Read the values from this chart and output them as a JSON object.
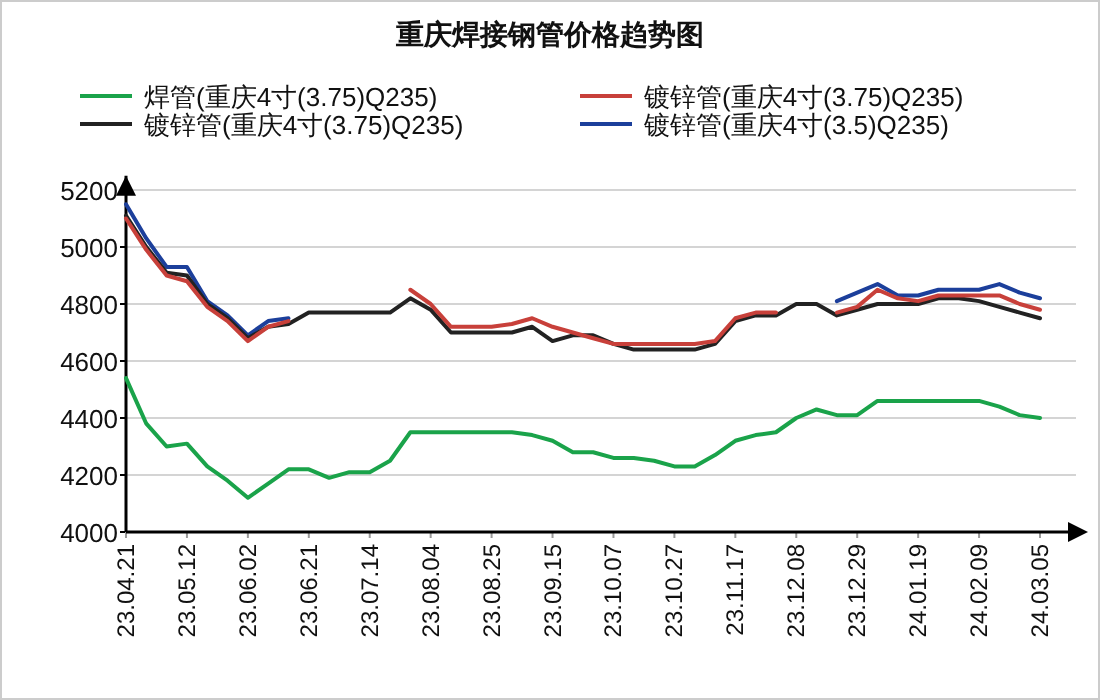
{
  "chart_data": {
    "type": "line",
    "title": "重庆焊接钢管价格趋势图",
    "categories": [
      "23.04.21",
      null,
      null,
      "23.05.12",
      null,
      null,
      "23.06.02",
      null,
      null,
      "23.06.21",
      null,
      null,
      "23.07.14",
      null,
      null,
      "23.08.04",
      null,
      null,
      "23.08.25",
      null,
      null,
      "23.09.15",
      null,
      null,
      "23.10.07",
      null,
      null,
      "23.10.27",
      null,
      null,
      "23.11.17",
      null,
      null,
      "23.12.08",
      null,
      null,
      "23.12.29",
      null,
      null,
      "24.01.19",
      null,
      null,
      "24.02.09",
      null,
      null,
      "24.03.05"
    ],
    "series": [
      {
        "name": "焊管(重庆4寸(3.75)Q235)",
        "color": "#1aa34a",
        "values": [
          4540,
          4380,
          4300,
          4310,
          4230,
          4180,
          4120,
          4170,
          4220,
          4220,
          4190,
          4210,
          4210,
          4250,
          4350,
          4350,
          4350,
          4350,
          4350,
          4350,
          4340,
          4320,
          4280,
          4280,
          4260,
          4260,
          4250,
          4230,
          4230,
          4270,
          4320,
          4340,
          4350,
          4400,
          4430,
          4410,
          4410,
          4460,
          4460,
          4460,
          4460,
          4460,
          4460,
          4440,
          4410,
          4400
        ]
      },
      {
        "name": "镀锌管(重庆4寸(3.75)Q235)",
        "color": "#c8403a",
        "values": [
          5100,
          4990,
          4900,
          4880,
          4790,
          4740,
          4670,
          4720,
          4740,
          null,
          null,
          null,
          null,
          null,
          4850,
          4800,
          4720,
          4720,
          4720,
          4730,
          4750,
          4720,
          4700,
          4680,
          4660,
          4660,
          4660,
          4660,
          4660,
          4670,
          4750,
          4770,
          4770,
          null,
          null,
          4770,
          4790,
          4850,
          4820,
          4810,
          4830,
          4830,
          4830,
          4830,
          4800,
          4780
        ]
      },
      {
        "name": "镀锌管(重庆4寸(3.75)Q235)",
        "color": "#222222",
        "values": [
          5110,
          5000,
          4910,
          4900,
          4800,
          4750,
          4680,
          4720,
          4730,
          4770,
          4770,
          4770,
          4770,
          4770,
          4820,
          4780,
          4700,
          4700,
          4700,
          4700,
          4720,
          4670,
          4690,
          4690,
          4660,
          4640,
          4640,
          4640,
          4640,
          4660,
          4740,
          4760,
          4760,
          4800,
          4800,
          4760,
          4780,
          4800,
          4800,
          4800,
          4820,
          4820,
          4810,
          4790,
          4770,
          4750
        ]
      },
      {
        "name": "镀锌管(重庆4寸(3.5)Q235)",
        "color": "#1c3f9b",
        "values": [
          5150,
          5030,
          4930,
          4930,
          4810,
          4760,
          4690,
          4740,
          4750,
          null,
          null,
          null,
          null,
          null,
          null,
          null,
          null,
          null,
          null,
          null,
          null,
          null,
          null,
          null,
          null,
          null,
          null,
          null,
          null,
          null,
          null,
          null,
          null,
          null,
          null,
          4810,
          4840,
          4870,
          4830,
          4830,
          4850,
          4850,
          4850,
          4870,
          4840,
          4820
        ]
      }
    ],
    "ylim": [
      4000,
      5250
    ],
    "yticks": [
      4000,
      4200,
      4400,
      4600,
      4800,
      5000,
      5200
    ],
    "grid": "y",
    "legend": "top"
  }
}
